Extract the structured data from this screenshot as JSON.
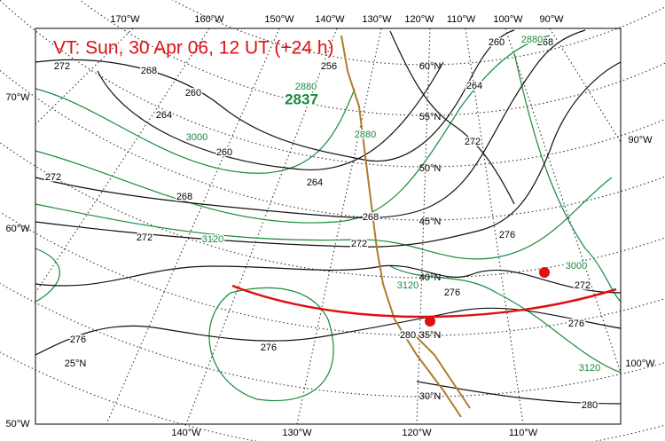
{
  "title": "VT:  Sun, 30 Apr 06, 12 UT (+24 h)",
  "top_lon_labels": [
    "170°W",
    "160°W",
    "150°W",
    "140°W",
    "130°W",
    "120°W",
    "110°W",
    "100°W",
    "90°W"
  ],
  "bottom_lon_labels": [
    "140°W",
    "130°W",
    "120°W",
    "110°W"
  ],
  "left_labels": [
    "70°W",
    "60°W",
    "50°W"
  ],
  "right_labels": [
    "90°W",
    "100°W"
  ],
  "lat_labels": [
    "60°N",
    "55°N",
    "50°N",
    "45°N",
    "40°N",
    "35°N",
    "30°N",
    "25°N"
  ],
  "black_contour_labels": [
    "272",
    "268",
    "260",
    "264",
    "272",
    "268",
    "260",
    "264",
    "268",
    "272",
    "272",
    "276",
    "276",
    "276",
    "280",
    "272",
    "276",
    "272",
    "264",
    "260",
    "268",
    "276",
    "280",
    "256"
  ],
  "green_contour_labels": [
    "2837",
    "3000",
    "3120",
    "3120",
    "3000",
    "3120",
    "2880",
    "2880",
    "2880"
  ]
}
